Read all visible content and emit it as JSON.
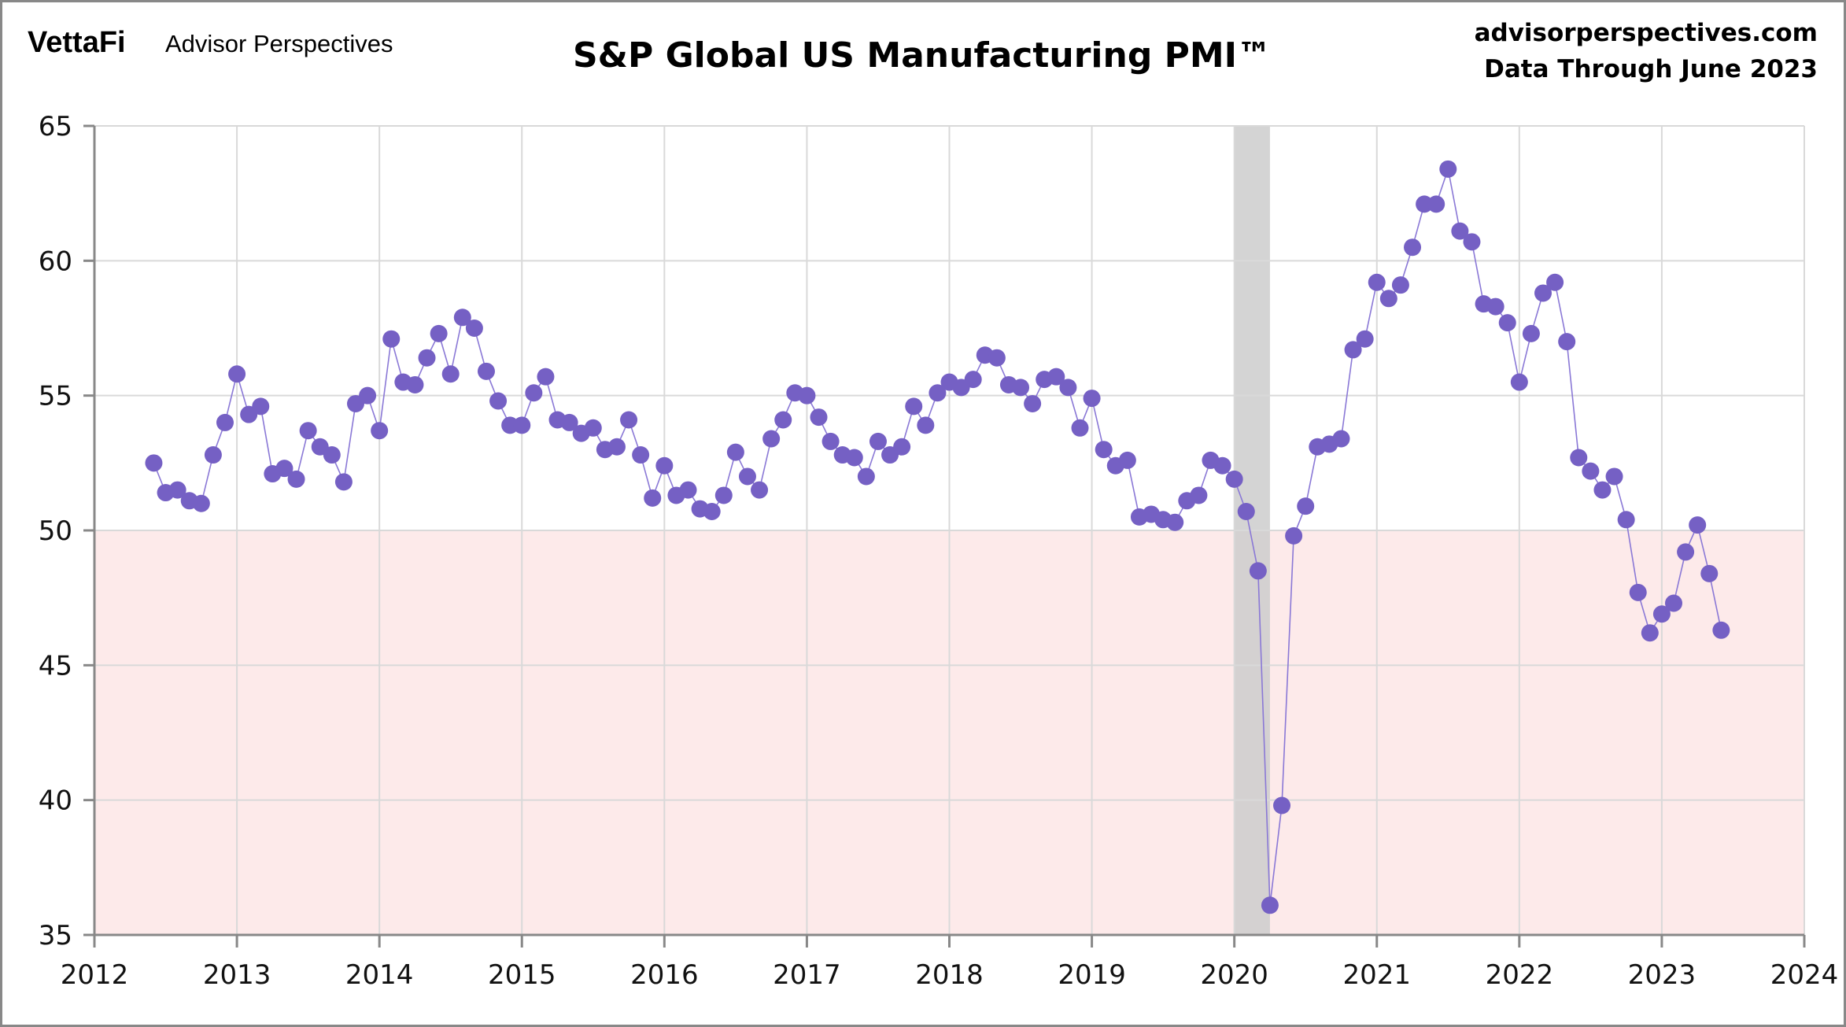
{
  "header": {
    "logo": "VettaFi",
    "brand": "Advisor Perspectives",
    "site": "advisorperspectives.com",
    "data_through": "Data Through  June 2023"
  },
  "chart_data": {
    "type": "line",
    "title": "S&P Global US Manufacturing PMI™",
    "xlabel": "",
    "ylabel": "",
    "x_start": "2012-06",
    "frequency": "monthly",
    "xlim": [
      2012,
      2024
    ],
    "ylim": [
      35,
      65
    ],
    "x_ticks": [
      "2012",
      "2013",
      "2014",
      "2015",
      "2016",
      "2017",
      "2018",
      "2019",
      "2020",
      "2021",
      "2022",
      "2023",
      "2024"
    ],
    "y_ticks": [
      "35",
      "40",
      "45",
      "50",
      "55",
      "60",
      "65"
    ],
    "grid": true,
    "contraction_threshold": 50,
    "contraction_color": "#fdeaea",
    "recession": {
      "start": "2020-01",
      "end": "2020-04",
      "color": "#cccccc"
    },
    "series_color": "#7560c4",
    "line_color": "#8a78d6",
    "values": [
      52.5,
      51.4,
      51.5,
      51.1,
      51.0,
      52.8,
      54.0,
      55.8,
      54.3,
      54.6,
      52.1,
      52.3,
      51.9,
      53.7,
      53.1,
      52.8,
      51.8,
      54.7,
      55.0,
      53.7,
      57.1,
      55.5,
      55.4,
      56.4,
      57.3,
      55.8,
      57.9,
      57.5,
      55.9,
      54.8,
      53.9,
      53.9,
      55.1,
      55.7,
      54.1,
      54.0,
      53.6,
      53.8,
      53.0,
      53.1,
      54.1,
      52.8,
      51.2,
      52.4,
      51.3,
      51.5,
      50.8,
      50.7,
      51.3,
      52.9,
      52.0,
      51.5,
      53.4,
      54.1,
      55.1,
      55.0,
      54.2,
      53.3,
      52.8,
      52.7,
      52.0,
      53.3,
      52.8,
      53.1,
      54.6,
      53.9,
      55.1,
      55.5,
      55.3,
      55.6,
      56.5,
      56.4,
      55.4,
      55.3,
      54.7,
      55.6,
      55.7,
      55.3,
      53.8,
      54.9,
      53.0,
      52.4,
      52.6,
      50.5,
      50.6,
      50.4,
      50.3,
      51.1,
      51.3,
      52.6,
      52.4,
      51.9,
      50.7,
      48.5,
      36.1,
      39.8,
      49.8,
      50.9,
      53.1,
      53.2,
      53.4,
      56.7,
      57.1,
      59.2,
      58.6,
      59.1,
      60.5,
      62.1,
      62.1,
      63.4,
      61.1,
      60.7,
      58.4,
      58.3,
      57.7,
      55.5,
      57.3,
      58.8,
      59.2,
      57.0,
      52.7,
      52.2,
      51.5,
      52.0,
      50.4,
      47.7,
      46.2,
      46.9,
      47.3,
      49.2,
      50.2,
      48.4,
      46.3
    ]
  }
}
